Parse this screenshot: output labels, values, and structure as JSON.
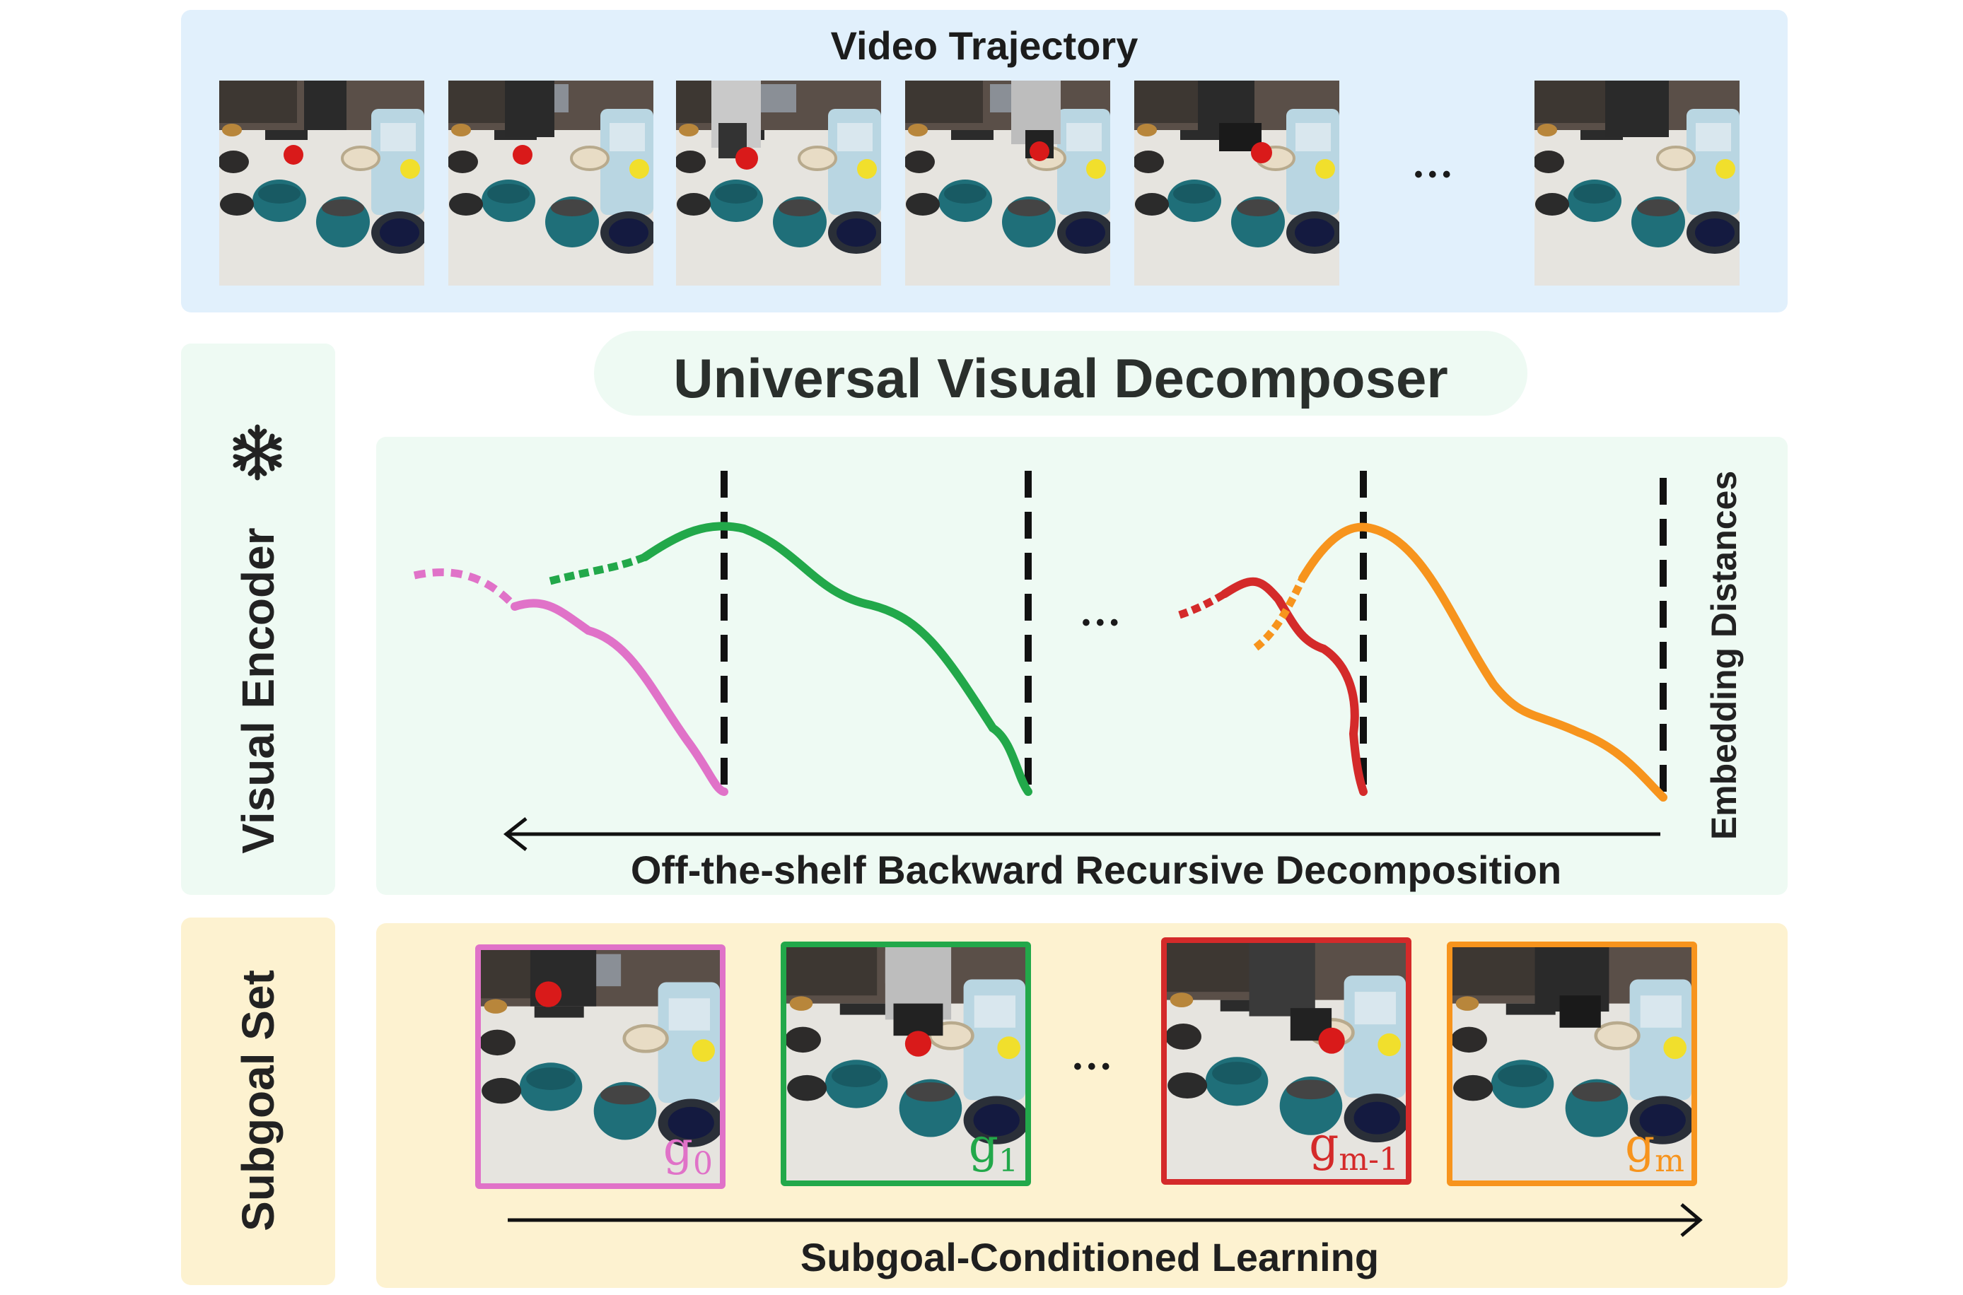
{
  "top_panel": {
    "title": "Video Trajectory",
    "ellipsis": "•••"
  },
  "left_panel": {
    "visual_encoder_label": "Visual Encoder",
    "frozen_icon": "snowflake-icon",
    "subgoal_set_label": "Subgoal Set"
  },
  "middle_panel": {
    "title": "Universal Visual Decomposer",
    "right_axis_label": "Embedding Distances",
    "arrow_label": "Off-the-shelf Backward Recursive Decomposition",
    "ellipsis": "•••"
  },
  "bottom_panel": {
    "arrow_label": "Subgoal-Conditioned Learning",
    "ellipsis": "•••",
    "goals": [
      {
        "label": "g",
        "sub": "0",
        "color": "#e072c8"
      },
      {
        "label": "g",
        "sub": "1",
        "color": "#22a84a"
      },
      {
        "label": "g",
        "sub": "m-1",
        "color": "#d42a2a"
      },
      {
        "label": "g",
        "sub": "m",
        "color": "#f7941d"
      }
    ]
  },
  "colors": {
    "top_bg": "#e1f0fc",
    "mid_bg": "#eefaf3",
    "bottom_bg": "#fdf2d0",
    "pink": "#e072c8",
    "green": "#22a84a",
    "red": "#d42a2a",
    "orange": "#f7941d"
  }
}
